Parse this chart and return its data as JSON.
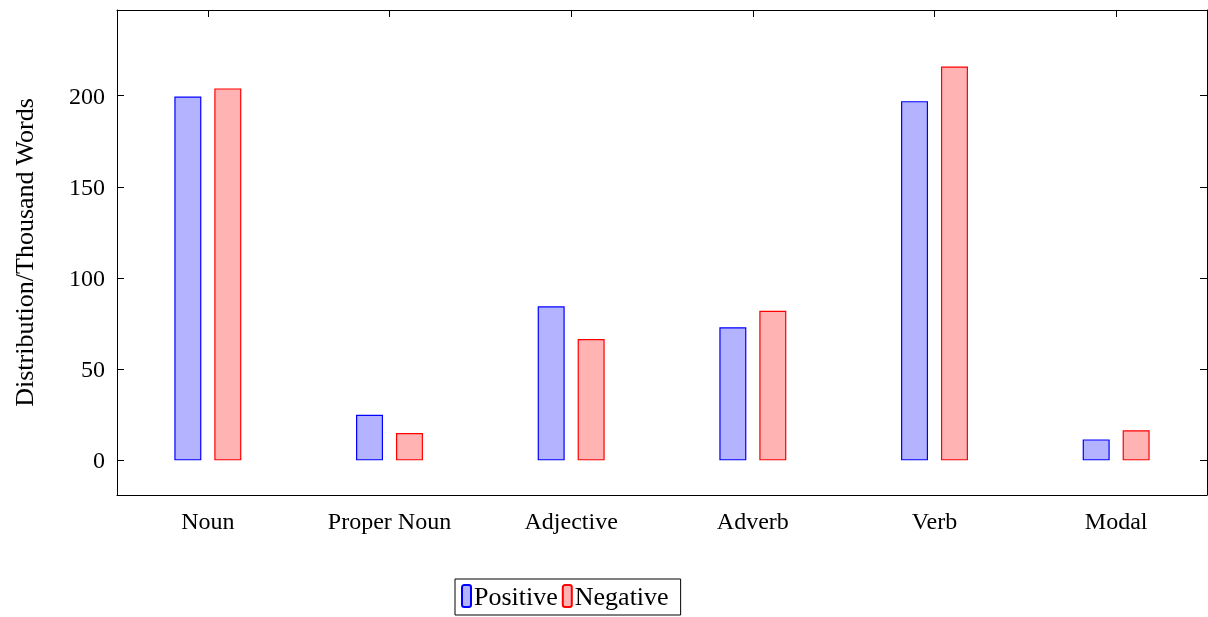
{
  "chart_data": {
    "type": "bar",
    "ylabel": "Distribution/Thousand Words",
    "categories": [
      "Noun",
      "Proper Noun",
      "Adjective",
      "Adverb",
      "Verb",
      "Modal"
    ],
    "series": [
      {
        "name": "Positive",
        "color": "#b3b3ff",
        "values": [
          199.5,
          25,
          84.5,
          73,
          197,
          11.5
        ]
      },
      {
        "name": "Negative",
        "color": "#ffb3b3",
        "values": [
          204,
          15,
          66.5,
          82,
          216,
          16.5
        ]
      }
    ],
    "ylim": [
      -19,
      247
    ],
    "yticks": [
      0,
      50,
      100,
      150,
      200
    ],
    "grid": false,
    "legend": "bottom"
  }
}
